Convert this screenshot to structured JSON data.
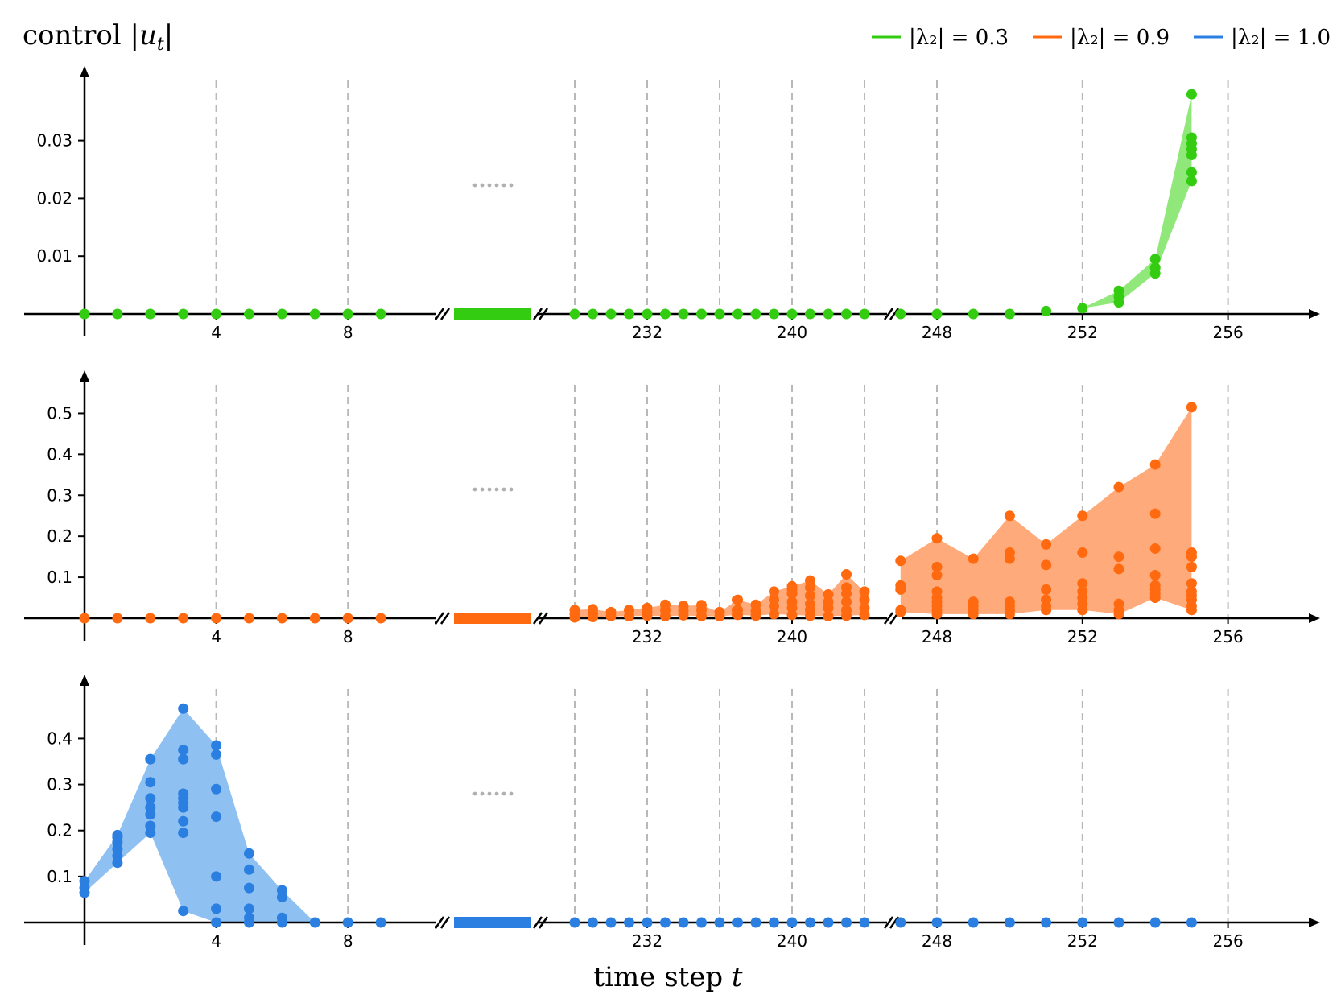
{
  "chart_data": {
    "type": "scatter",
    "title": "control |u_t|",
    "xlabel": "time step t",
    "x_tick_labels": [
      "4",
      "8",
      "232",
      "240",
      "248",
      "252",
      "256"
    ],
    "legend": {
      "placement": "top-right",
      "entries": [
        "|λ₂| = 0.3",
        "|λ₂| = 0.9",
        "|λ₂| = 1.0"
      ]
    },
    "break_marks": "//",
    "ellipsis": "......",
    "grid": "dashed vertical lines at t = 4, 8, 228, 232, 236, 240, 244, 248, 252, 256",
    "panels": [
      {
        "series_name": "|λ₂| = 0.3",
        "color": "#33cc11",
        "fill_color": "#90e87a",
        "ylim": [
          0,
          0.039
        ],
        "y_ticks": [
          "0.01",
          "0.02",
          "0.03"
        ],
        "points": [
          [
            0,
            0
          ],
          [
            1,
            0
          ],
          [
            2,
            0
          ],
          [
            3,
            0
          ],
          [
            4,
            0
          ],
          [
            5,
            0
          ],
          [
            6,
            0
          ],
          [
            7,
            0
          ],
          [
            8,
            0
          ],
          [
            9,
            0
          ],
          [
            228,
            0
          ],
          [
            229,
            0
          ],
          [
            230,
            0
          ],
          [
            231,
            0
          ],
          [
            232,
            0
          ],
          [
            233,
            0
          ],
          [
            234,
            0
          ],
          [
            235,
            0
          ],
          [
            236,
            0
          ],
          [
            237,
            0
          ],
          [
            238,
            0
          ],
          [
            239,
            0
          ],
          [
            240,
            0
          ],
          [
            241,
            0
          ],
          [
            242,
            0
          ],
          [
            243,
            0
          ],
          [
            244,
            0
          ],
          [
            247,
            0
          ],
          [
            248,
            0
          ],
          [
            249,
            0
          ],
          [
            250,
            0
          ],
          [
            251,
            0.0005
          ],
          [
            252,
            0.001
          ],
          [
            253,
            0.002
          ],
          [
            253,
            0.003
          ],
          [
            253,
            0.004
          ],
          [
            254,
            0.007
          ],
          [
            254,
            0.008
          ],
          [
            254,
            0.0095
          ],
          [
            255,
            0.023
          ],
          [
            255,
            0.0245
          ],
          [
            255,
            0.0275
          ],
          [
            255,
            0.0285
          ],
          [
            255,
            0.0295
          ],
          [
            255,
            0.0305
          ],
          [
            255,
            0.038
          ]
        ]
      },
      {
        "series_name": "|λ₂| = 0.9",
        "color": "#ff6a10",
        "fill_color": "#ffaa7a",
        "ylim": [
          0,
          0.55
        ],
        "y_ticks": [
          "0.1",
          "0.2",
          "0.3",
          "0.4",
          "0.5"
        ],
        "points": [
          [
            0,
            0
          ],
          [
            1,
            0
          ],
          [
            2,
            0
          ],
          [
            3,
            0
          ],
          [
            4,
            0
          ],
          [
            5,
            0
          ],
          [
            6,
            0
          ],
          [
            7,
            0
          ],
          [
            8,
            0
          ],
          [
            9,
            0
          ],
          [
            228,
            0.002
          ],
          [
            228,
            0.01
          ],
          [
            228,
            0.02
          ],
          [
            229,
            0.003
          ],
          [
            229,
            0.012
          ],
          [
            229,
            0.022
          ],
          [
            230,
            0.005
          ],
          [
            230,
            0.015
          ],
          [
            231,
            0.005
          ],
          [
            231,
            0.02
          ],
          [
            232,
            0.006
          ],
          [
            232,
            0.015
          ],
          [
            232,
            0.025
          ],
          [
            233,
            0.005
          ],
          [
            233,
            0.02
          ],
          [
            233,
            0.033
          ],
          [
            234,
            0.007
          ],
          [
            234,
            0.018
          ],
          [
            234,
            0.03
          ],
          [
            235,
            0.005
          ],
          [
            235,
            0.02
          ],
          [
            235,
            0.032
          ],
          [
            236,
            0.005
          ],
          [
            236,
            0.015
          ],
          [
            237,
            0.008
          ],
          [
            237,
            0.02
          ],
          [
            237,
            0.045
          ],
          [
            238,
            0.006
          ],
          [
            238,
            0.018
          ],
          [
            238,
            0.033
          ],
          [
            239,
            0.01
          ],
          [
            239,
            0.03
          ],
          [
            239,
            0.045
          ],
          [
            239,
            0.065
          ],
          [
            240,
            0.008
          ],
          [
            240,
            0.025
          ],
          [
            240,
            0.04
          ],
          [
            240,
            0.06
          ],
          [
            240,
            0.07
          ],
          [
            240,
            0.078
          ],
          [
            241,
            0.006
          ],
          [
            241,
            0.02
          ],
          [
            241,
            0.035
          ],
          [
            241,
            0.055
          ],
          [
            241,
            0.075
          ],
          [
            241,
            0.092
          ],
          [
            242,
            0.005
          ],
          [
            242,
            0.025
          ],
          [
            242,
            0.04
          ],
          [
            242,
            0.058
          ],
          [
            243,
            0.006
          ],
          [
            243,
            0.02
          ],
          [
            243,
            0.04
          ],
          [
            243,
            0.06
          ],
          [
            243,
            0.075
          ],
          [
            243,
            0.107
          ],
          [
            244,
            0.008
          ],
          [
            244,
            0.025
          ],
          [
            244,
            0.045
          ],
          [
            244,
            0.065
          ],
          [
            247,
            0.015
          ],
          [
            247,
            0.02
          ],
          [
            247,
            0.07
          ],
          [
            247,
            0.08
          ],
          [
            247,
            0.14
          ],
          [
            248,
            0.01
          ],
          [
            248,
            0.02
          ],
          [
            248,
            0.03
          ],
          [
            248,
            0.04
          ],
          [
            248,
            0.05
          ],
          [
            248,
            0.065
          ],
          [
            248,
            0.105
          ],
          [
            248,
            0.125
          ],
          [
            248,
            0.195
          ],
          [
            249,
            0.01
          ],
          [
            249,
            0.02
          ],
          [
            249,
            0.03
          ],
          [
            249,
            0.04
          ],
          [
            249,
            0.145
          ],
          [
            250,
            0.01
          ],
          [
            250,
            0.02
          ],
          [
            250,
            0.03
          ],
          [
            250,
            0.04
          ],
          [
            250,
            0.145
          ],
          [
            250,
            0.16
          ],
          [
            250,
            0.25
          ],
          [
            251,
            0.02
          ],
          [
            251,
            0.03
          ],
          [
            251,
            0.045
          ],
          [
            251,
            0.07
          ],
          [
            251,
            0.13
          ],
          [
            251,
            0.18
          ],
          [
            252,
            0.02
          ],
          [
            252,
            0.035
          ],
          [
            252,
            0.05
          ],
          [
            252,
            0.065
          ],
          [
            252,
            0.085
          ],
          [
            252,
            0.16
          ],
          [
            252,
            0.25
          ],
          [
            253,
            0.01
          ],
          [
            253,
            0.02
          ],
          [
            253,
            0.035
          ],
          [
            253,
            0.12
          ],
          [
            253,
            0.15
          ],
          [
            253,
            0.32
          ],
          [
            254,
            0.05
          ],
          [
            254,
            0.06
          ],
          [
            254,
            0.07
          ],
          [
            254,
            0.08
          ],
          [
            254,
            0.105
          ],
          [
            254,
            0.17
          ],
          [
            254,
            0.255
          ],
          [
            254,
            0.375
          ],
          [
            255,
            0.02
          ],
          [
            255,
            0.03
          ],
          [
            255,
            0.045
          ],
          [
            255,
            0.055
          ],
          [
            255,
            0.065
          ],
          [
            255,
            0.085
          ],
          [
            255,
            0.125
          ],
          [
            255,
            0.15
          ],
          [
            255,
            0.16
          ],
          [
            255,
            0.515
          ]
        ]
      },
      {
        "series_name": "|λ₂| = 1.0",
        "color": "#2a7fe0",
        "fill_color": "#8ec0f2",
        "ylim": [
          0,
          0.49
        ],
        "y_ticks": [
          "0.1",
          "0.2",
          "0.3",
          "0.4"
        ],
        "points": [
          [
            0,
            0.065
          ],
          [
            0,
            0.075
          ],
          [
            0,
            0.09
          ],
          [
            1,
            0.13
          ],
          [
            1,
            0.145
          ],
          [
            1,
            0.16
          ],
          [
            1,
            0.175
          ],
          [
            1,
            0.185
          ],
          [
            1,
            0.19
          ],
          [
            2,
            0.195
          ],
          [
            2,
            0.21
          ],
          [
            2,
            0.235
          ],
          [
            2,
            0.25
          ],
          [
            2,
            0.27
          ],
          [
            2,
            0.305
          ],
          [
            2,
            0.355
          ],
          [
            3,
            0.025
          ],
          [
            3,
            0.195
          ],
          [
            3,
            0.22
          ],
          [
            3,
            0.25
          ],
          [
            3,
            0.26
          ],
          [
            3,
            0.27
          ],
          [
            3,
            0.28
          ],
          [
            3,
            0.355
          ],
          [
            3,
            0.375
          ],
          [
            3,
            0.465
          ],
          [
            4,
            0.0
          ],
          [
            4,
            0.03
          ],
          [
            4,
            0.1
          ],
          [
            4,
            0.23
          ],
          [
            4,
            0.29
          ],
          [
            4,
            0.365
          ],
          [
            4,
            0.385
          ],
          [
            5,
            0.0
          ],
          [
            5,
            0.01
          ],
          [
            5,
            0.03
          ],
          [
            5,
            0.075
          ],
          [
            5,
            0.115
          ],
          [
            5,
            0.15
          ],
          [
            6,
            0.0
          ],
          [
            6,
            0.01
          ],
          [
            6,
            0.055
          ],
          [
            6,
            0.07
          ],
          [
            7,
            0
          ],
          [
            8,
            0
          ],
          [
            9,
            0
          ],
          [
            228,
            0
          ],
          [
            229,
            0
          ],
          [
            230,
            0
          ],
          [
            231,
            0
          ],
          [
            232,
            0
          ],
          [
            233,
            0
          ],
          [
            234,
            0
          ],
          [
            235,
            0
          ],
          [
            236,
            0
          ],
          [
            237,
            0
          ],
          [
            238,
            0
          ],
          [
            239,
            0
          ],
          [
            240,
            0
          ],
          [
            241,
            0
          ],
          [
            242,
            0
          ],
          [
            243,
            0
          ],
          [
            244,
            0
          ],
          [
            247,
            0
          ],
          [
            248,
            0
          ],
          [
            249,
            0
          ],
          [
            250,
            0
          ],
          [
            251,
            0
          ],
          [
            252,
            0
          ],
          [
            253,
            0
          ],
          [
            254,
            0
          ],
          [
            255,
            0
          ]
        ]
      }
    ]
  }
}
